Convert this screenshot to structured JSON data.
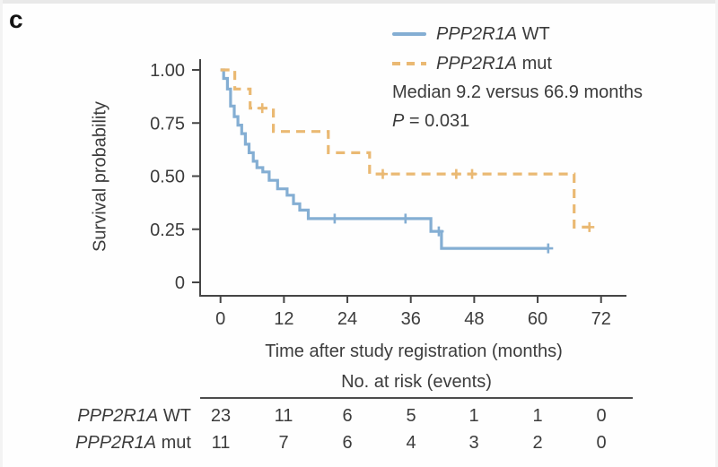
{
  "figure": {
    "panel_label": "c"
  },
  "legend": {
    "items": [
      {
        "gene": "PPP2R1A",
        "suffix": " WT",
        "color": "#84aed3",
        "style": "solid"
      },
      {
        "gene": "PPP2R1A",
        "suffix": " mut",
        "color": "#eab973",
        "style": "dashed"
      }
    ],
    "median_text": "Median 9.2 versus 66.9 months",
    "p_label": "P",
    "p_value": " = 0.031"
  },
  "chart_data": {
    "type": "line",
    "subtype": "kaplan-meier-step",
    "title": "",
    "xlabel": "Time after study registration (months)",
    "ylabel": "Survival probability",
    "xlim": [
      0,
      72
    ],
    "ylim": [
      0,
      1
    ],
    "grid": false,
    "legend_position": "top-right",
    "x_ticks": {
      "values": [
        0,
        12,
        24,
        36,
        48,
        60,
        72
      ],
      "labels": [
        "0",
        "12",
        "24",
        "36",
        "48",
        "60",
        "72"
      ]
    },
    "y_ticks": {
      "values": [
        1.0,
        0.75,
        0.5,
        0.25,
        0
      ],
      "labels": [
        "1.00",
        "0.75",
        "0.50",
        "0.25",
        "0"
      ]
    },
    "annotations": [
      "Median 9.2 versus 66.9 months",
      "P = 0.031"
    ],
    "series": [
      {
        "name": "PPP2R1A WT",
        "color": "#84aed3",
        "dash": "solid",
        "median_months": 9.2,
        "steps": [
          [
            0,
            1.0
          ],
          [
            0.6,
            0.96
          ],
          [
            1.3,
            0.91
          ],
          [
            1.9,
            0.83
          ],
          [
            2.6,
            0.78
          ],
          [
            3.3,
            0.74
          ],
          [
            4.0,
            0.7
          ],
          [
            4.7,
            0.65
          ],
          [
            5.4,
            0.61
          ],
          [
            6.2,
            0.57
          ],
          [
            6.9,
            0.54
          ],
          [
            8.0,
            0.52
          ],
          [
            9.2,
            0.48
          ],
          [
            10.8,
            0.44
          ],
          [
            12.6,
            0.41
          ],
          [
            13.8,
            0.37
          ],
          [
            15.0,
            0.34
          ],
          [
            16.6,
            0.3
          ],
          [
            39.8,
            0.24
          ],
          [
            41.8,
            0.16
          ]
        ],
        "end_time": 62.0,
        "censors": [
          [
            21.6,
            0.3
          ],
          [
            35.0,
            0.3
          ],
          [
            41.3,
            0.24
          ],
          [
            62.0,
            0.16
          ]
        ]
      },
      {
        "name": "PPP2R1A mut",
        "color": "#eab973",
        "dash": "dashed",
        "median_months": 66.9,
        "steps": [
          [
            0,
            1.0
          ],
          [
            2.7,
            0.91
          ],
          [
            5.6,
            0.82
          ],
          [
            10.0,
            0.71
          ],
          [
            20.4,
            0.61
          ],
          [
            28.2,
            0.51
          ],
          [
            66.9,
            0.26
          ]
        ],
        "end_time": 69.8,
        "censors": [
          [
            7.9,
            0.82
          ],
          [
            30.7,
            0.51
          ],
          [
            44.6,
            0.51
          ],
          [
            47.6,
            0.51
          ],
          [
            69.8,
            0.26
          ]
        ]
      }
    ]
  },
  "risk_table": {
    "title": "No. at risk (events)",
    "time_points": [
      0,
      12,
      24,
      36,
      48,
      60,
      72
    ],
    "rows": [
      {
        "gene": "PPP2R1A",
        "suffix": " WT",
        "counts": [
          "23",
          "11",
          "6",
          "5",
          "1",
          "1",
          "0"
        ]
      },
      {
        "gene": "PPP2R1A",
        "suffix": " mut",
        "counts": [
          "11",
          "7",
          "6",
          "4",
          "3",
          "2",
          "0"
        ]
      }
    ]
  },
  "colors": {
    "wt": "#84aed3",
    "mut": "#eab973",
    "axis": "#454545",
    "text": "#3c3c3c"
  }
}
